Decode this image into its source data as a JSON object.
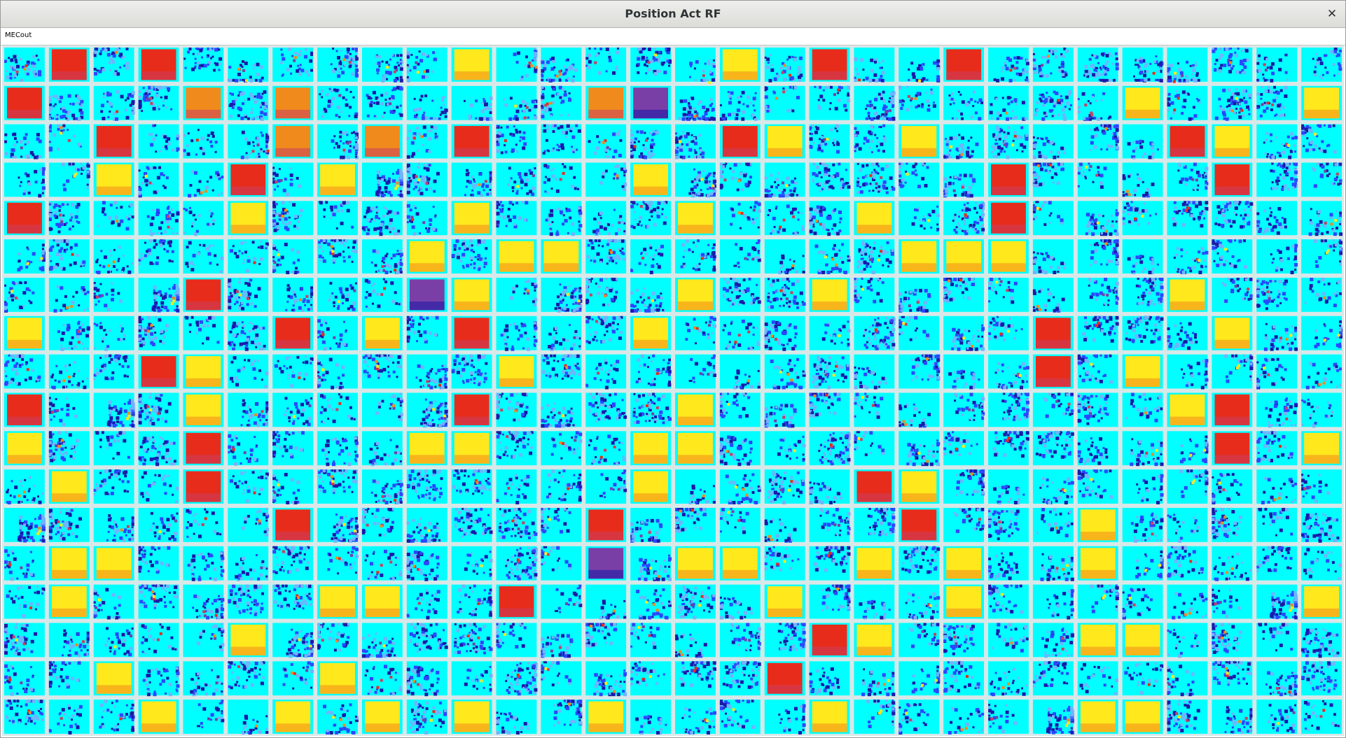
{
  "window": {
    "title": "Position Act RF",
    "close_symbol": "✕"
  },
  "layer": {
    "name": "MECout"
  },
  "grid": {
    "columns": 30,
    "rows": 18,
    "units": [
      "B",
      "R",
      "B",
      "R",
      "B",
      "B",
      "B",
      "B",
      "B",
      "B",
      "Y",
      "B",
      "B",
      "B",
      "B",
      "B",
      "Y",
      "B",
      "R",
      "B",
      "B",
      "R",
      "B",
      "B",
      "B",
      "B",
      "B",
      "B",
      "B",
      "B",
      "R",
      "B",
      "B",
      "B",
      "O",
      "B",
      "O",
      "B",
      "B",
      "B",
      "B",
      "B",
      "B",
      "O",
      "P",
      "B",
      "B",
      "B",
      "B",
      "B",
      "B",
      "B",
      "B",
      "B",
      "B",
      "Y",
      "B",
      "B",
      "B",
      "Y",
      "B",
      "B",
      "R",
      "B",
      "B",
      "B",
      "O",
      "B",
      "O",
      "B",
      "R",
      "B",
      "B",
      "B",
      "B",
      "B",
      "R",
      "Y",
      "B",
      "B",
      "Y",
      "B",
      "B",
      "B",
      "B",
      "B",
      "R",
      "Y",
      "B",
      "B",
      "B",
      "B",
      "Y",
      "B",
      "B",
      "R",
      "B",
      "Y",
      "B",
      "B",
      "B",
      "B",
      "B",
      "B",
      "Y",
      "B",
      "B",
      "B",
      "B",
      "B",
      "B",
      "B",
      "R",
      "B",
      "B",
      "B",
      "B",
      "R",
      "B",
      "B",
      "R",
      "B",
      "B",
      "B",
      "B",
      "Y",
      "B",
      "B",
      "B",
      "B",
      "Y",
      "B",
      "B",
      "B",
      "B",
      "Y",
      "B",
      "B",
      "B",
      "Y",
      "B",
      "B",
      "R",
      "B",
      "B",
      "B",
      "B",
      "B",
      "B",
      "B",
      "B",
      "B",
      "B",
      "B",
      "B",
      "B",
      "B",
      "B",
      "B",
      "Y",
      "B",
      "Y",
      "Y",
      "B",
      "B",
      "B",
      "B",
      "B",
      "B",
      "B",
      "Y",
      "Y",
      "Y",
      "B",
      "B",
      "B",
      "B",
      "B",
      "B",
      "B",
      "B",
      "B",
      "B",
      "B",
      "R",
      "B",
      "B",
      "B",
      "B",
      "P",
      "Y",
      "B",
      "B",
      "B",
      "B",
      "Y",
      "B",
      "B",
      "Y",
      "B",
      "B",
      "B",
      "B",
      "B",
      "B",
      "B",
      "Y",
      "B",
      "B",
      "B",
      "Y",
      "B",
      "B",
      "B",
      "B",
      "B",
      "R",
      "B",
      "Y",
      "B",
      "R",
      "B",
      "B",
      "B",
      "Y",
      "B",
      "B",
      "B",
      "B",
      "B",
      "B",
      "B",
      "B",
      "R",
      "B",
      "B",
      "B",
      "Y",
      "B",
      "B",
      "B",
      "B",
      "B",
      "R",
      "Y",
      "B",
      "B",
      "B",
      "B",
      "B",
      "B",
      "Y",
      "B",
      "B",
      "B",
      "B",
      "B",
      "B",
      "B",
      "B",
      "B",
      "B",
      "B",
      "R",
      "B",
      "Y",
      "B",
      "B",
      "B",
      "B",
      "R",
      "B",
      "B",
      "B",
      "Y",
      "B",
      "B",
      "B",
      "B",
      "B",
      "R",
      "B",
      "B",
      "B",
      "B",
      "Y",
      "B",
      "B",
      "B",
      "B",
      "B",
      "B",
      "B",
      "B",
      "B",
      "B",
      "Y",
      "R",
      "B",
      "B",
      "Y",
      "B",
      "B",
      "B",
      "R",
      "B",
      "B",
      "B",
      "B",
      "Y",
      "Y",
      "B",
      "B",
      "B",
      "Y",
      "Y",
      "B",
      "B",
      "B",
      "B",
      "B",
      "B",
      "B",
      "B",
      "B",
      "B",
      "B",
      "R",
      "B",
      "Y",
      "B",
      "Y",
      "B",
      "B",
      "R",
      "B",
      "B",
      "B",
      "B",
      "B",
      "B",
      "B",
      "B",
      "B",
      "Y",
      "B",
      "B",
      "B",
      "B",
      "R",
      "Y",
      "B",
      "B",
      "B",
      "B",
      "B",
      "B",
      "B",
      "B",
      "B",
      "B",
      "B",
      "B",
      "B",
      "B",
      "B",
      "R",
      "B",
      "B",
      "B",
      "B",
      "B",
      "B",
      "R",
      "B",
      "B",
      "B",
      "B",
      "B",
      "B",
      "R",
      "B",
      "B",
      "B",
      "Y",
      "B",
      "B",
      "B",
      "B",
      "B",
      "B",
      "Y",
      "Y",
      "B",
      "B",
      "B",
      "B",
      "B",
      "B",
      "B",
      "B",
      "B",
      "B",
      "P",
      "B",
      "Y",
      "Y",
      "B",
      "B",
      "Y",
      "B",
      "Y",
      "B",
      "B",
      "Y",
      "B",
      "B",
      "B",
      "B",
      "B",
      "B",
      "Y",
      "B",
      "B",
      "B",
      "B",
      "B",
      "Y",
      "Y",
      "B",
      "B",
      "R",
      "B",
      "B",
      "B",
      "B",
      "B",
      "Y",
      "B",
      "B",
      "B",
      "Y",
      "B",
      "B",
      "B",
      "B",
      "B",
      "B",
      "B",
      "Y",
      "B",
      "B",
      "B",
      "B",
      "B",
      "Y",
      "B",
      "B",
      "B",
      "B",
      "B",
      "B",
      "B",
      "B",
      "B",
      "B",
      "B",
      "B",
      "R",
      "Y",
      "B",
      "B",
      "B",
      "B",
      "Y",
      "Y",
      "B",
      "B",
      "B",
      "B",
      "B",
      "B",
      "Y",
      "B",
      "B",
      "B",
      "B",
      "Y",
      "B",
      "B",
      "B",
      "B",
      "B",
      "B",
      "B",
      "B",
      "B",
      "R",
      "B",
      "B",
      "B",
      "B",
      "B",
      "B",
      "B",
      "B",
      "B",
      "B",
      "B",
      "B",
      "B",
      "B",
      "B",
      "Y",
      "B",
      "B",
      "Y",
      "B",
      "Y",
      "B",
      "Y",
      "B",
      "B",
      "Y",
      "B",
      "B",
      "B",
      "B",
      "Y",
      "B",
      "B",
      "B",
      "B",
      "B",
      "Y",
      "Y",
      "B",
      "B",
      "B",
      "B"
    ],
    "palette": {
      "cyan": "#00ffff",
      "light_blue": "#6fb4ff",
      "blue": "#2b47ff",
      "navy": "#1a1aa8",
      "purple": "#7a3fa6",
      "magenta": "#c84060",
      "red": "#e82c1c",
      "orange": "#f08a1c",
      "yellow": "#ffe81c",
      "grid_line": "#d8e8e8"
    }
  }
}
